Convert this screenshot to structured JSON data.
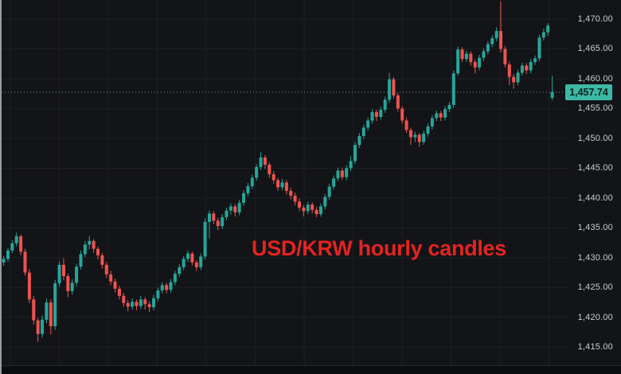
{
  "annotation": {
    "text": "USD/KRW hourly candles",
    "color": "#e32421"
  },
  "price_label": {
    "text": "1,457.74",
    "value": 1457.74,
    "bg": "#3cb9a6",
    "text_color": "#062019"
  },
  "colors": {
    "background": "#131417",
    "grid": "#1d1f23",
    "axis_text": "#c8cbd1",
    "price_line": "#6fa396",
    "left_border": "#b0b3ba",
    "time_axis_bg": "#0c0d10"
  },
  "chart_data": {
    "type": "candlestick",
    "title": "USD/KRW hourly candles",
    "symbol": "USD/KRW",
    "interval": "hourly",
    "last_price": 1457.74,
    "up_color": "#26a69a",
    "down_color": "#ef5350",
    "grid": true,
    "legend_position": "none",
    "y_axis": {
      "top": 1473.2,
      "bottom": 1410.5
    },
    "y_ticks": [
      {
        "label": "1,470.00",
        "value": 1470
      },
      {
        "label": "1,465.00",
        "value": 1465
      },
      {
        "label": "1,460.00",
        "value": 1460
      },
      {
        "label": "1,455.00",
        "value": 1455
      },
      {
        "label": "1,450.00",
        "value": 1450
      },
      {
        "label": "1,445.00",
        "value": 1445
      },
      {
        "label": "1,440.00",
        "value": 1440
      },
      {
        "label": "1,435.00",
        "value": 1435
      },
      {
        "label": "1,430.00",
        "value": 1430
      },
      {
        "label": "1,425.00",
        "value": 1425
      },
      {
        "label": "1,420.00",
        "value": 1420
      },
      {
        "label": "1,415.00",
        "value": 1415
      }
    ],
    "price_line": {
      "value": 1457.74,
      "style": "dotted"
    },
    "candles": [
      [
        1429.2,
        1430.3,
        1428.6,
        1429.8
      ],
      [
        1429.8,
        1431.6,
        1429.3,
        1431.2
      ],
      [
        1431.2,
        1432.9,
        1430.8,
        1432.4
      ],
      [
        1432.4,
        1434.2,
        1431.9,
        1433.6
      ],
      [
        1433.6,
        1433.9,
        1430.4,
        1431.0
      ],
      [
        1431.0,
        1431.5,
        1427.0,
        1427.5
      ],
      [
        1427.5,
        1428.1,
        1422.4,
        1423.0
      ],
      [
        1423.0,
        1423.6,
        1418.8,
        1419.5
      ],
      [
        1419.5,
        1419.9,
        1415.9,
        1417.2
      ],
      [
        1417.2,
        1420.3,
        1416.6,
        1419.6
      ],
      [
        1419.6,
        1423.1,
        1419.0,
        1422.5
      ],
      [
        1422.5,
        1423.0,
        1417.1,
        1418.5
      ],
      [
        1418.5,
        1426.3,
        1417.9,
        1425.7
      ],
      [
        1425.7,
        1429.4,
        1425.1,
        1428.8
      ],
      [
        1428.8,
        1429.9,
        1426.2,
        1426.9
      ],
      [
        1426.9,
        1427.3,
        1423.4,
        1424.4
      ],
      [
        1424.4,
        1426.4,
        1423.8,
        1425.8
      ],
      [
        1425.8,
        1429.0,
        1425.2,
        1428.5
      ],
      [
        1428.5,
        1431.2,
        1428.0,
        1430.6
      ],
      [
        1430.6,
        1432.8,
        1430.1,
        1432.2
      ],
      [
        1432.2,
        1433.6,
        1431.4,
        1432.8
      ],
      [
        1432.8,
        1433.1,
        1430.8,
        1431.5
      ],
      [
        1431.5,
        1431.9,
        1429.7,
        1430.4
      ],
      [
        1430.4,
        1430.8,
        1428.2,
        1428.8
      ],
      [
        1428.8,
        1429.3,
        1426.6,
        1427.2
      ],
      [
        1427.2,
        1427.8,
        1425.4,
        1426.0
      ],
      [
        1426.0,
        1426.5,
        1424.2,
        1424.8
      ],
      [
        1424.8,
        1425.3,
        1423.0,
        1423.6
      ],
      [
        1423.6,
        1424.1,
        1421.8,
        1422.4
      ],
      [
        1422.4,
        1422.9,
        1421.0,
        1421.8
      ],
      [
        1421.8,
        1423.2,
        1421.3,
        1422.6
      ],
      [
        1422.6,
        1423.0,
        1421.2,
        1421.9
      ],
      [
        1421.9,
        1423.6,
        1421.4,
        1423.0
      ],
      [
        1423.0,
        1423.4,
        1421.3,
        1422.2
      ],
      [
        1422.2,
        1422.7,
        1420.9,
        1421.7
      ],
      [
        1421.7,
        1423.8,
        1421.2,
        1423.2
      ],
      [
        1423.2,
        1425.0,
        1422.7,
        1424.5
      ],
      [
        1424.5,
        1425.9,
        1424.0,
        1425.4
      ],
      [
        1425.4,
        1425.8,
        1424.0,
        1424.6
      ],
      [
        1424.6,
        1426.4,
        1424.1,
        1425.9
      ],
      [
        1425.9,
        1427.8,
        1425.4,
        1427.3
      ],
      [
        1427.3,
        1428.9,
        1426.8,
        1428.4
      ],
      [
        1428.4,
        1430.3,
        1427.9,
        1429.8
      ],
      [
        1429.8,
        1431.2,
        1429.3,
        1430.7
      ],
      [
        1430.7,
        1431.0,
        1428.7,
        1429.2
      ],
      [
        1429.2,
        1429.6,
        1427.8,
        1428.4
      ],
      [
        1428.4,
        1430.7,
        1427.9,
        1430.2
      ],
      [
        1430.2,
        1436.6,
        1429.7,
        1436.0
      ],
      [
        1436.0,
        1437.9,
        1433.2,
        1437.4
      ],
      [
        1437.4,
        1437.8,
        1435.6,
        1436.2
      ],
      [
        1436.2,
        1436.7,
        1434.6,
        1435.3
      ],
      [
        1435.3,
        1437.3,
        1434.8,
        1436.8
      ],
      [
        1436.8,
        1438.4,
        1436.3,
        1437.9
      ],
      [
        1437.9,
        1439.1,
        1437.2,
        1438.6
      ],
      [
        1438.6,
        1439.0,
        1436.9,
        1437.6
      ],
      [
        1437.6,
        1439.7,
        1437.1,
        1439.2
      ],
      [
        1439.2,
        1441.3,
        1438.7,
        1440.8
      ],
      [
        1440.8,
        1442.5,
        1440.3,
        1442.0
      ],
      [
        1442.0,
        1443.9,
        1441.5,
        1443.4
      ],
      [
        1443.4,
        1445.7,
        1442.9,
        1445.2
      ],
      [
        1445.2,
        1447.7,
        1444.7,
        1446.8
      ],
      [
        1446.8,
        1447.2,
        1444.9,
        1445.6
      ],
      [
        1445.6,
        1446.0,
        1443.4,
        1444.0
      ],
      [
        1444.0,
        1444.5,
        1442.4,
        1443.0
      ],
      [
        1443.0,
        1443.4,
        1441.2,
        1441.8
      ],
      [
        1441.8,
        1443.2,
        1441.3,
        1442.6
      ],
      [
        1442.6,
        1443.0,
        1440.6,
        1441.2
      ],
      [
        1441.2,
        1441.7,
        1439.8,
        1440.4
      ],
      [
        1440.4,
        1440.9,
        1438.8,
        1439.4
      ],
      [
        1439.4,
        1439.9,
        1437.8,
        1438.4
      ],
      [
        1438.4,
        1438.8,
        1436.9,
        1437.8
      ],
      [
        1437.8,
        1439.4,
        1437.3,
        1438.9
      ],
      [
        1438.9,
        1439.3,
        1437.4,
        1438.0
      ],
      [
        1438.0,
        1438.5,
        1436.8,
        1437.3
      ],
      [
        1437.3,
        1439.1,
        1436.9,
        1438.6
      ],
      [
        1438.6,
        1440.7,
        1438.1,
        1440.2
      ],
      [
        1440.2,
        1442.4,
        1439.7,
        1441.9
      ],
      [
        1441.9,
        1443.8,
        1441.4,
        1443.3
      ],
      [
        1443.3,
        1445.1,
        1442.8,
        1444.6
      ],
      [
        1444.6,
        1445.0,
        1443.0,
        1443.5
      ],
      [
        1443.5,
        1445.5,
        1443.0,
        1445.0
      ],
      [
        1445.0,
        1447.0,
        1444.5,
        1446.2
      ],
      [
        1446.2,
        1449.4,
        1445.7,
        1448.9
      ],
      [
        1448.9,
        1450.9,
        1448.4,
        1450.4
      ],
      [
        1450.4,
        1452.3,
        1449.9,
        1451.8
      ],
      [
        1451.8,
        1453.5,
        1451.3,
        1453.0
      ],
      [
        1453.0,
        1454.9,
        1452.5,
        1454.4
      ],
      [
        1454.4,
        1454.8,
        1452.9,
        1453.6
      ],
      [
        1453.6,
        1455.3,
        1453.1,
        1454.8
      ],
      [
        1454.8,
        1457.0,
        1454.3,
        1456.5
      ],
      [
        1456.5,
        1461.0,
        1456.0,
        1459.9
      ],
      [
        1459.9,
        1460.3,
        1456.7,
        1457.2
      ],
      [
        1457.2,
        1457.6,
        1454.5,
        1455.0
      ],
      [
        1455.0,
        1455.4,
        1452.5,
        1453.0
      ],
      [
        1453.0,
        1453.5,
        1450.9,
        1451.4
      ],
      [
        1451.4,
        1451.8,
        1448.9,
        1450.2
      ],
      [
        1450.2,
        1451.1,
        1449.4,
        1450.6
      ],
      [
        1450.6,
        1450.9,
        1448.6,
        1449.4
      ],
      [
        1449.4,
        1451.3,
        1448.9,
        1450.8
      ],
      [
        1450.8,
        1452.5,
        1450.3,
        1452.0
      ],
      [
        1452.0,
        1453.9,
        1451.5,
        1453.4
      ],
      [
        1453.4,
        1454.7,
        1452.9,
        1454.2
      ],
      [
        1454.2,
        1454.6,
        1452.9,
        1453.5
      ],
      [
        1453.5,
        1455.4,
        1453.0,
        1454.9
      ],
      [
        1454.9,
        1456.1,
        1454.4,
        1455.6
      ],
      [
        1455.6,
        1461.4,
        1455.1,
        1460.9
      ],
      [
        1460.9,
        1465.4,
        1460.5,
        1464.9
      ],
      [
        1464.9,
        1465.3,
        1462.8,
        1463.3
      ],
      [
        1463.3,
        1464.7,
        1462.8,
        1464.2
      ],
      [
        1464.2,
        1464.6,
        1462.2,
        1462.8
      ],
      [
        1462.8,
        1463.2,
        1460.9,
        1461.9
      ],
      [
        1461.9,
        1464.0,
        1461.4,
        1463.5
      ],
      [
        1463.5,
        1465.1,
        1463.0,
        1464.6
      ],
      [
        1464.6,
        1466.3,
        1464.1,
        1465.8
      ],
      [
        1465.8,
        1467.3,
        1465.3,
        1466.8
      ],
      [
        1466.8,
        1468.6,
        1466.3,
        1468.0
      ],
      [
        1468.0,
        1473.0,
        1464.4,
        1465.0
      ],
      [
        1465.0,
        1465.5,
        1461.9,
        1462.4
      ],
      [
        1462.4,
        1462.9,
        1458.9,
        1460.3
      ],
      [
        1460.3,
        1460.8,
        1458.3,
        1459.4
      ],
      [
        1459.4,
        1461.5,
        1458.9,
        1461.0
      ],
      [
        1461.0,
        1462.7,
        1460.5,
        1462.2
      ],
      [
        1462.2,
        1462.6,
        1460.8,
        1461.4
      ],
      [
        1461.4,
        1463.3,
        1460.9,
        1462.8
      ],
      [
        1462.8,
        1463.9,
        1462.3,
        1463.4
      ],
      [
        1463.4,
        1467.4,
        1462.9,
        1466.9
      ],
      [
        1466.9,
        1468.4,
        1466.4,
        1467.8
      ],
      [
        1467.8,
        1469.3,
        1467.2,
        1468.9
      ],
      [
        1456.8,
        1460.5,
        1456.4,
        1457.74
      ]
    ]
  }
}
